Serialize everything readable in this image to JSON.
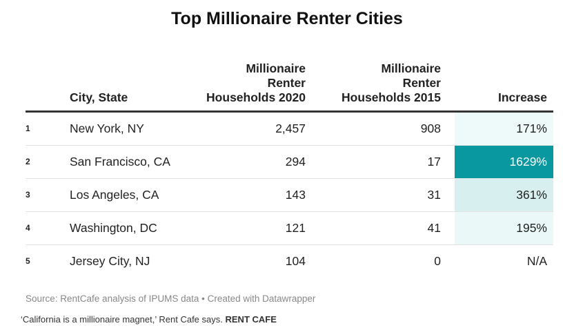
{
  "colors": {
    "heat_low": "#eefaf9",
    "heat_mid": "#d7f0ef",
    "heat_high": "#0a98a0",
    "text_on_high": "#ffffff"
  },
  "chart_data": {
    "type": "table",
    "title": "Top Millionaire Renter Cities",
    "columns": [
      "",
      "City, State",
      "Millionaire Renter Households 2020",
      "Millionaire Renter Households 2015",
      "Increase"
    ],
    "header_lines": {
      "city": [
        "City, State"
      ],
      "c2020": [
        "Millionaire",
        "Renter",
        "Households 2020"
      ],
      "c2015": [
        "Millionaire",
        "Renter",
        "Households 2015"
      ],
      "increase": [
        "Increase"
      ]
    },
    "rows": [
      {
        "rank": "1",
        "city": "New York, NY",
        "h2020": "2,457",
        "h2015": "908",
        "increase": "171%",
        "increase_value": 171
      },
      {
        "rank": "2",
        "city": "San Francisco, CA",
        "h2020": "294",
        "h2015": "17",
        "increase": "1629%",
        "increase_value": 1629
      },
      {
        "rank": "3",
        "city": "Los Angeles, CA",
        "h2020": "143",
        "h2015": "31",
        "increase": "361%",
        "increase_value": 361
      },
      {
        "rank": "4",
        "city": "Washington, DC",
        "h2020": "121",
        "h2015": "41",
        "increase": "195%",
        "increase_value": 195
      },
      {
        "rank": "5",
        "city": "Jersey City, NJ",
        "h2020": "104",
        "h2015": "0",
        "increase": "N/A",
        "increase_value": null
      }
    ],
    "source": "Source: RentCafe analysis of IPUMS data • Created with Datawrapper"
  },
  "caption": {
    "text": "‘California is a millionaire magnet,’ Rent Cafe says.",
    "credit": "RENT CAFE"
  }
}
